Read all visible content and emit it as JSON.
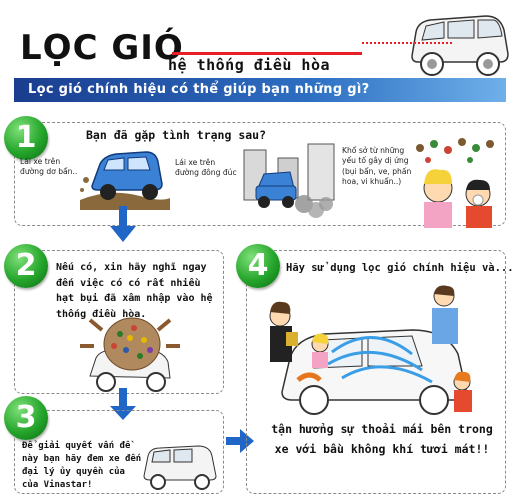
{
  "header": {
    "title": "LỌC GIÓ",
    "subtitle": "hệ thống điều hòa",
    "banner": "Lọc gió chính hiệu có thể giúp bạn những gì?"
  },
  "steps": [
    {
      "number": "1",
      "title": "Bạn đã gặp tình trạng sau?",
      "captions": [
        "Lái xe trên đường dơ bẩn..",
        "Lái xe trên đường đông đúc",
        "Khổ sở từ những yếu tố gây dị ứng (bụi bẩn, ve, phấn hoa, vi khuẩn..)"
      ]
    },
    {
      "number": "2",
      "text": "Nếu có, xin hãy nghĩ ngay đến việc có có rất nhiều hạt bụi đã xâm nhập vào hệ thống điều hòa."
    },
    {
      "number": "3",
      "text": "Để giải quyết vấn đề này bạn hãy đem xe đến đại lý ủy quyền của của Vinastar!"
    },
    {
      "number": "4",
      "title": "Hãy sử dụng lọc gió chính hiệu và...",
      "text": "tận hưởng sự thoải mái bên trong xe với bầu không khí tươi mát!!"
    }
  ],
  "colors": {
    "accent_red": "#e61e25",
    "banner_blue": "#1a3d8f",
    "number_green": "#25a52b",
    "arrow_blue": "#1f66c6"
  }
}
